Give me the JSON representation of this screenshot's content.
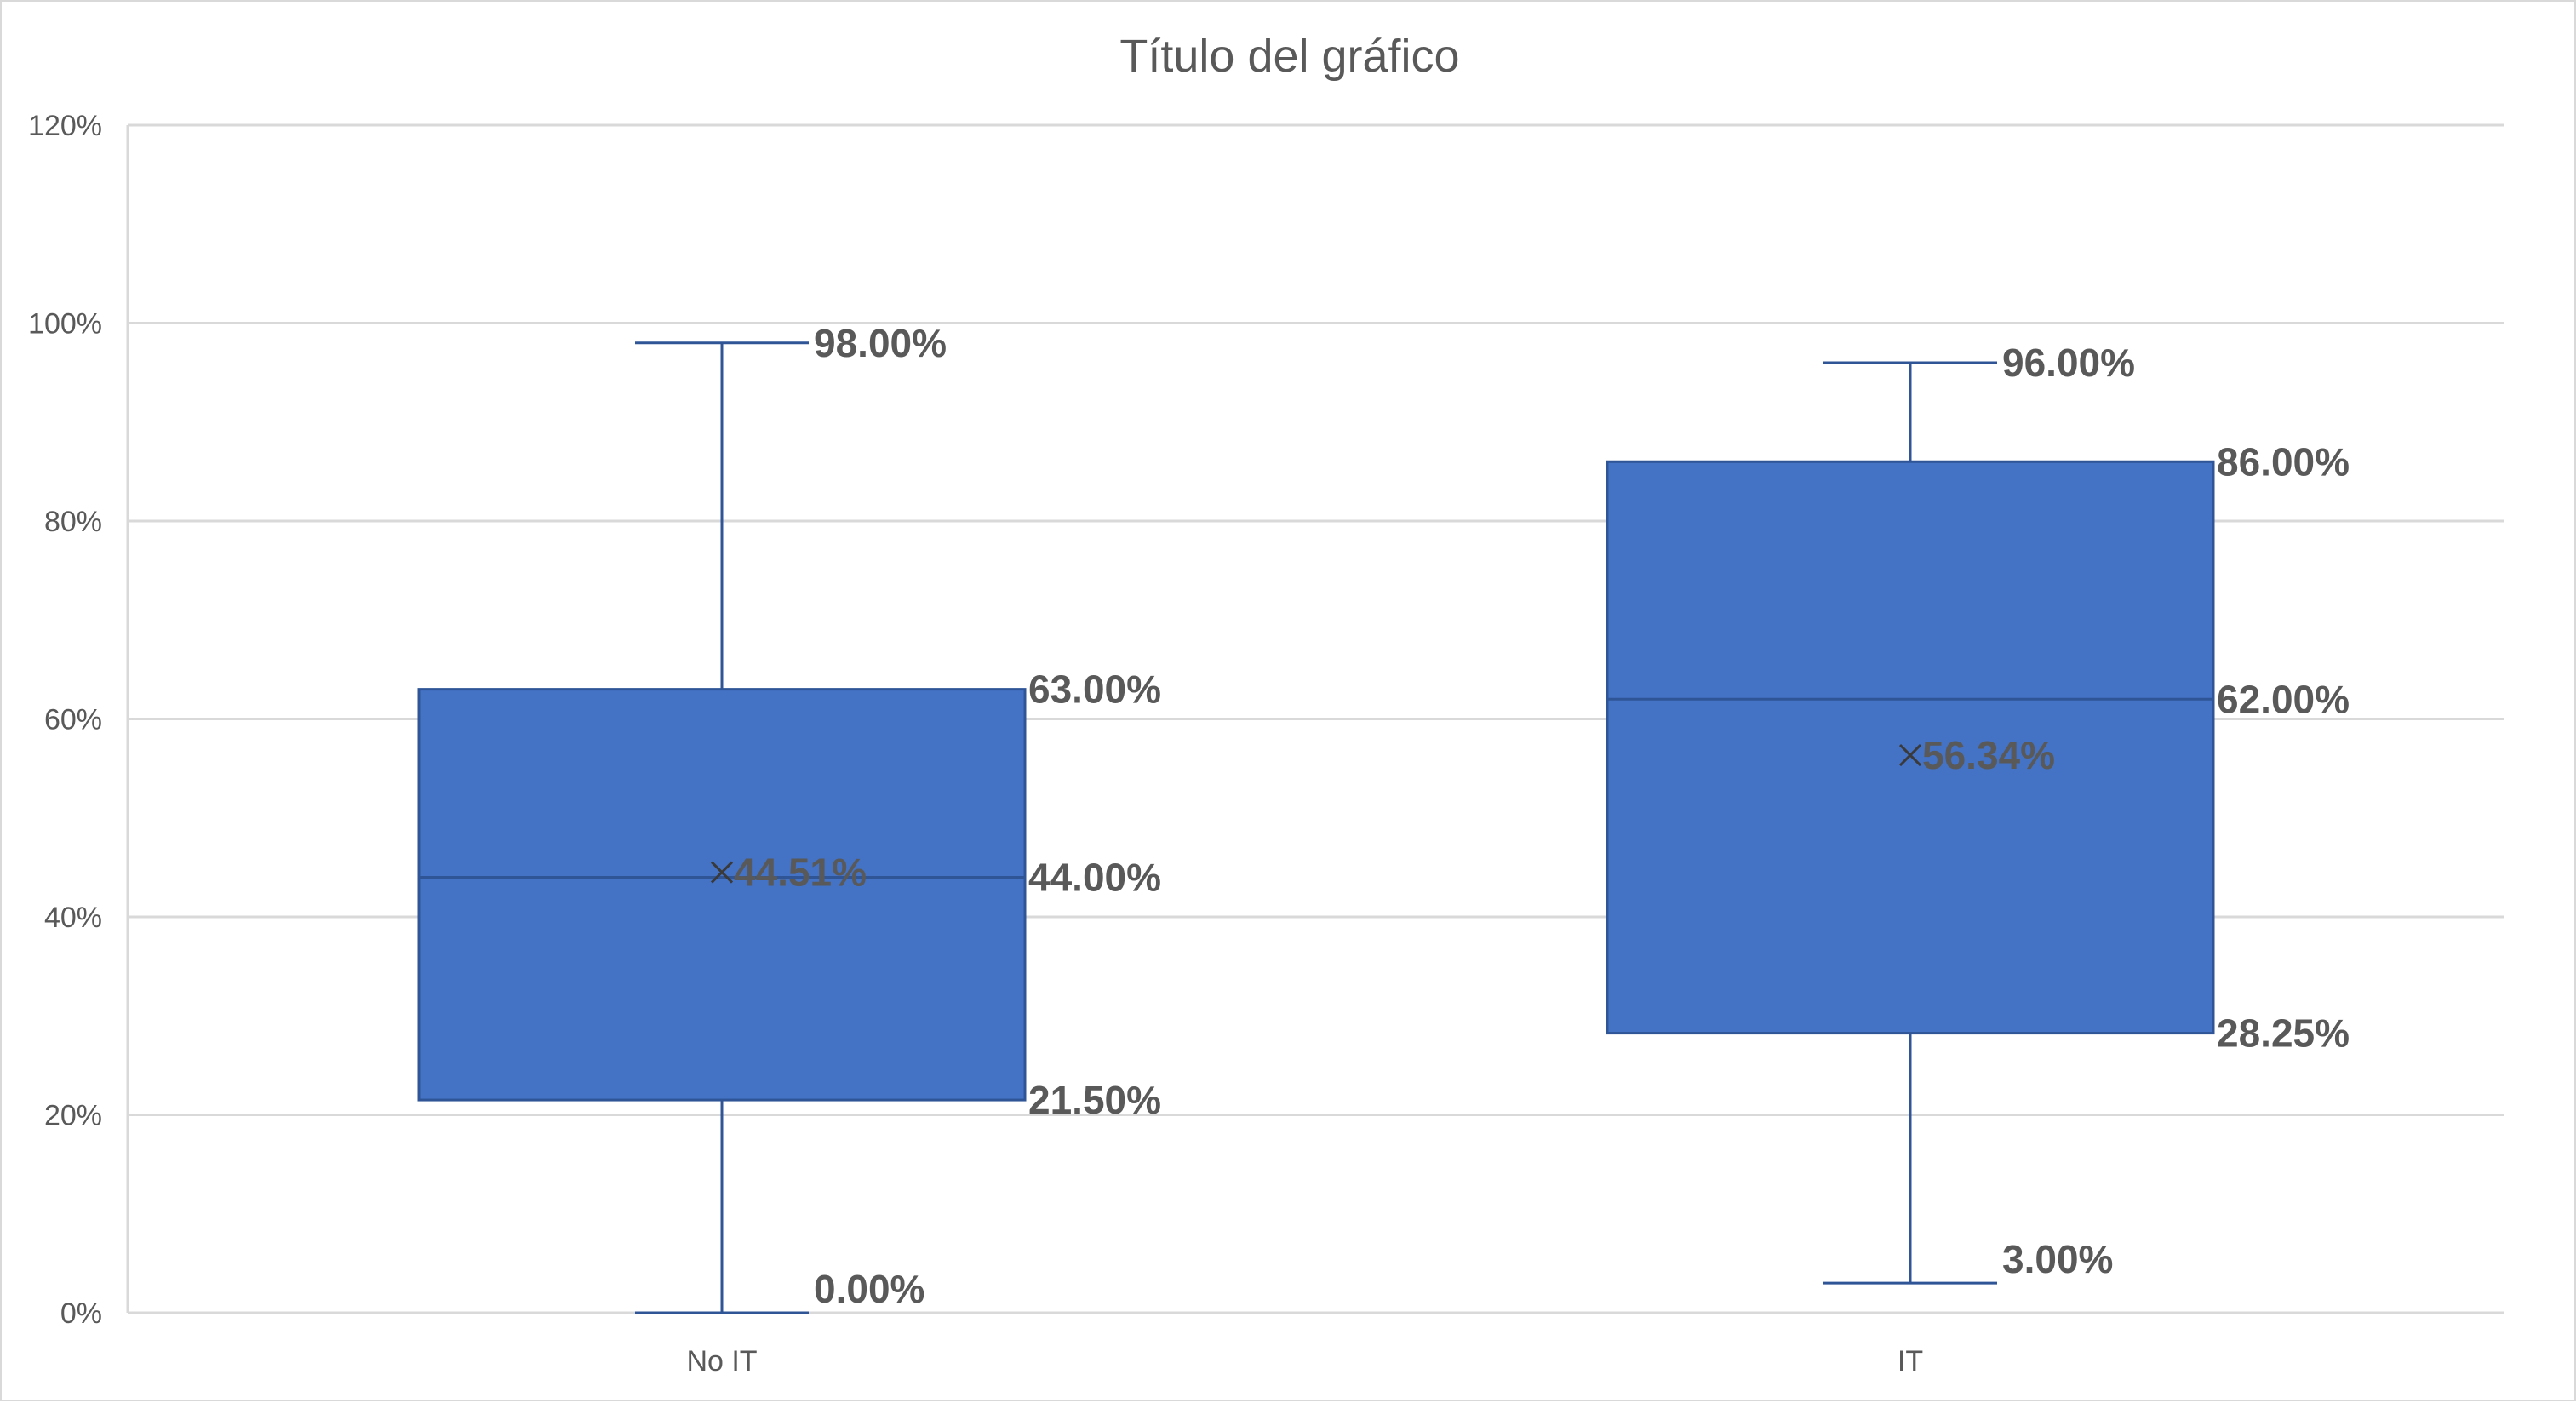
{
  "chart_data": {
    "type": "boxplot",
    "title": "Título del gráfico",
    "xlabel": "",
    "ylabel": "",
    "ylim": [
      0,
      1.2
    ],
    "y_ticks": [
      0,
      0.2,
      0.4,
      0.6,
      0.8,
      1.0,
      1.2
    ],
    "y_tick_labels": [
      "0%",
      "20%",
      "40%",
      "60%",
      "80%",
      "100%",
      "120%"
    ],
    "grid": true,
    "legend": "none",
    "colors": {
      "box_fill": "#4472c4",
      "box_stroke": "#2f5597",
      "grid": "#d9d9d9",
      "text": "#595959"
    },
    "categories": [
      "No IT",
      "IT"
    ],
    "boxes": [
      {
        "category": "No IT",
        "min": 0.0,
        "q1": 0.215,
        "median": 0.44,
        "q3": 0.63,
        "max": 0.98,
        "mean": 0.4451,
        "labels": {
          "min": "0.00%",
          "q1": "21.50%",
          "median": "44.00%",
          "q3": "63.00%",
          "max": "98.00%",
          "mean": "44.51%"
        }
      },
      {
        "category": "IT",
        "min": 0.03,
        "q1": 0.2825,
        "median": 0.62,
        "q3": 0.86,
        "max": 0.96,
        "mean": 0.5634,
        "labels": {
          "min": "3.00%",
          "q1": "28.25%",
          "median": "62.00%",
          "q3": "86.00%",
          "max": "96.00%",
          "mean": "56.34%"
        }
      }
    ]
  }
}
